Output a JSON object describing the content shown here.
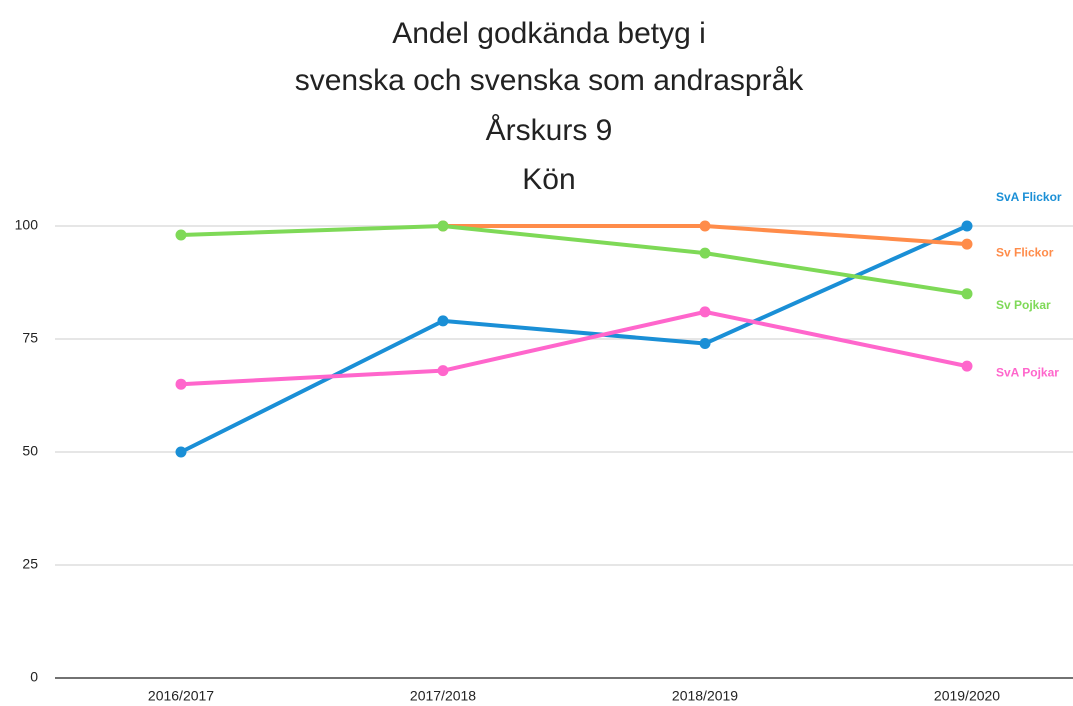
{
  "chart_data": {
    "type": "line",
    "title": [
      "Andel godkända betyg i",
      "svenska och svenska som andraspråk",
      "Årskurs  9",
      "Kön"
    ],
    "categories": [
      "2016/2017",
      "2017/2018",
      "2018/2019",
      "2019/2020"
    ],
    "series": [
      {
        "name": "SvA Flickor",
        "color": "#1a8fd6",
        "values": [
          50,
          79,
          74,
          100
        ]
      },
      {
        "name": "Sv Flickor",
        "color": "#ff8c4a",
        "values": [
          null,
          100,
          100,
          96
        ]
      },
      {
        "name": "Sv Pojkar",
        "color": "#7ed957",
        "values": [
          98,
          100,
          94,
          85
        ]
      },
      {
        "name": "SvA Pojkar",
        "color": "#ff66cc",
        "values": [
          65,
          68,
          81,
          69
        ]
      }
    ],
    "ylim": [
      0,
      100
    ],
    "yticks": [
      0,
      25,
      50,
      75,
      100
    ],
    "grid": true
  }
}
